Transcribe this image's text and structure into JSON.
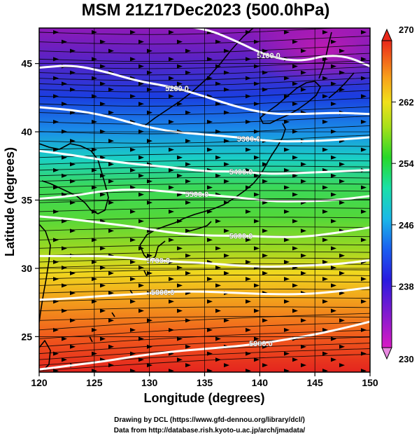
{
  "chart_data": {
    "type": "heatmap",
    "title": "MSM 21Z17Dec2023 (500.0hPa)",
    "xlabel": "Longitude (degrees)",
    "ylabel": "Latitude  (degrees)",
    "xlim": [
      120,
      150
    ],
    "ylim": [
      22.4,
      47.6
    ],
    "xticks": [
      "120",
      "125",
      "130",
      "135",
      "140",
      "145",
      "150"
    ],
    "yticks": [
      "25",
      "30",
      "35",
      "40",
      "45"
    ],
    "colorbar": {
      "min": 230,
      "max": 270,
      "ticks": [
        "230",
        "238",
        "246",
        "254",
        "262",
        "270"
      ]
    },
    "contours": [
      {
        "label": "5100.0",
        "lon": [
          120,
          125,
          130,
          135,
          138,
          140,
          142,
          144,
          146,
          148,
          150
        ],
        "lat": [
          47.8,
          48.0,
          48.0,
          47.6,
          46.6,
          45.8,
          45.3,
          45.2,
          45.6,
          45.5,
          44.8
        ],
        "label_lon": 140.8
      },
      {
        "label": "5200.0",
        "lon": [
          120,
          123,
          126,
          129,
          132,
          135,
          138,
          141,
          144,
          147,
          150
        ],
        "lat": [
          44.7,
          44.9,
          44.4,
          43.7,
          43.3,
          42.6,
          41.8,
          41.3,
          41.3,
          41.4,
          41.3
        ],
        "label_lon": 132.5
      },
      {
        "label": "5300.0",
        "lon": [
          120,
          123,
          126,
          129,
          132,
          135,
          138,
          141,
          144,
          147,
          150
        ],
        "lat": [
          41.8,
          41.6,
          41.2,
          40.5,
          40.0,
          39.8,
          39.6,
          39.3,
          39.3,
          39.4,
          39.6
        ],
        "label_lon": 139.0
      },
      {
        "label": "5400.0",
        "lon": [
          120,
          123,
          126,
          129,
          132,
          135,
          138,
          141,
          144,
          147,
          150
        ],
        "lat": [
          38.6,
          38.3,
          37.9,
          37.6,
          37.4,
          37.1,
          37.1,
          36.9,
          37.0,
          37.1,
          37.2
        ],
        "label_lon": 138.3
      },
      {
        "label": "5500.0",
        "lon": [
          120,
          123,
          126,
          129,
          132,
          135,
          138,
          141,
          144,
          147,
          150
        ],
        "lat": [
          35.1,
          35.3,
          35.7,
          35.8,
          35.6,
          35.4,
          35.2,
          34.9,
          34.9,
          35.0,
          35.3
        ],
        "label_lon": 134.3
      },
      {
        "label": "5600.0",
        "lon": [
          120,
          123,
          126,
          129,
          132,
          135,
          138,
          141,
          144,
          147,
          150
        ],
        "lat": [
          33.8,
          33.6,
          33.3,
          33.0,
          32.6,
          32.4,
          32.4,
          32.3,
          32.3,
          32.6,
          33.0
        ],
        "label_lon": 138.3
      },
      {
        "label": "5700.0",
        "lon": [
          120,
          123,
          126,
          129,
          132,
          135,
          138,
          141,
          144,
          147,
          150
        ],
        "lat": [
          30.9,
          30.9,
          30.9,
          30.7,
          30.5,
          30.4,
          30.2,
          30.1,
          30.2,
          30.3,
          30.6
        ],
        "label_lon": 130.8
      },
      {
        "label": "5800.0",
        "lon": [
          120,
          123,
          126,
          129,
          132,
          135,
          138,
          141,
          144,
          147,
          150
        ],
        "lat": [
          27.7,
          27.8,
          28.0,
          28.1,
          28.3,
          28.3,
          28.2,
          28.1,
          28.1,
          28.3,
          28.6
        ],
        "label_lon": 131.2
      },
      {
        "label": "5900.0",
        "lon": [
          120,
          123,
          126,
          129,
          132,
          135,
          138,
          141,
          144,
          147,
          150
        ],
        "lat": [
          22.6,
          22.9,
          23.2,
          23.6,
          23.9,
          24.1,
          24.3,
          24.6,
          25.0,
          25.5,
          26.1
        ],
        "label_lon": 140.1
      }
    ],
    "grid": true,
    "legend": "colorbar right"
  },
  "credits": {
    "line1": "Drawing by DCL (https://www.gfd-dennou.org/library/dcl/)",
    "line2": "Data from http://database.rish.kyoto-u.ac.jp/arch/jmadata/"
  }
}
